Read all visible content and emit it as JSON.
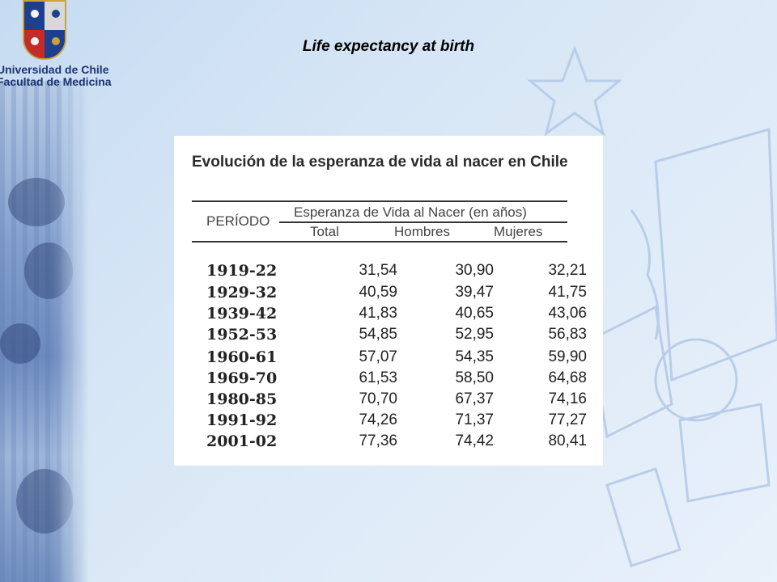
{
  "logo": {
    "line1": "Universidad de Chile",
    "line2": "Facultad de Medicina"
  },
  "slide": {
    "title": "Life expectancy at birth"
  },
  "table": {
    "title": "Evolución de la esperanza de vida al nacer en Chile",
    "period_header": "PERÍODO",
    "group_header": "Esperanza de Vida al Nacer (en años)",
    "columns": [
      "Total",
      "Hombres",
      "Mujeres"
    ],
    "rows": [
      {
        "period": "1919-22",
        "total": "31,54",
        "hombres": "30,90",
        "mujeres": "32,21"
      },
      {
        "period": "1929-32",
        "total": "40,59",
        "hombres": "39,47",
        "mujeres": "41,75"
      },
      {
        "period": "1939-42",
        "total": "41,83",
        "hombres": "40,65",
        "mujeres": "43,06"
      },
      {
        "period": "1952-53",
        "total": "54,85",
        "hombres": "52,95",
        "mujeres": "56,83"
      },
      {
        "period": "1960-61",
        "total": "57,07",
        "hombres": "54,35",
        "mujeres": "59,90"
      },
      {
        "period": "1969-70",
        "total": "61,53",
        "hombres": "58,50",
        "mujeres": "64,68"
      },
      {
        "period": "1980-85",
        "total": "70,70",
        "hombres": "67,37",
        "mujeres": "74,16"
      },
      {
        "period": "1991-92",
        "total": "74,26",
        "hombres": "71,37",
        "mujeres": "77,27"
      },
      {
        "period": "2001-02",
        "total": "77,36",
        "hombres": "74,42",
        "mujeres": "80,41"
      }
    ]
  },
  "colors": {
    "background": "#d8e7f6",
    "logo_text": "#1c3470",
    "shield_blue": "#1d3f8e",
    "shield_red": "#c52b2b",
    "shield_gold": "#c9a23a"
  }
}
